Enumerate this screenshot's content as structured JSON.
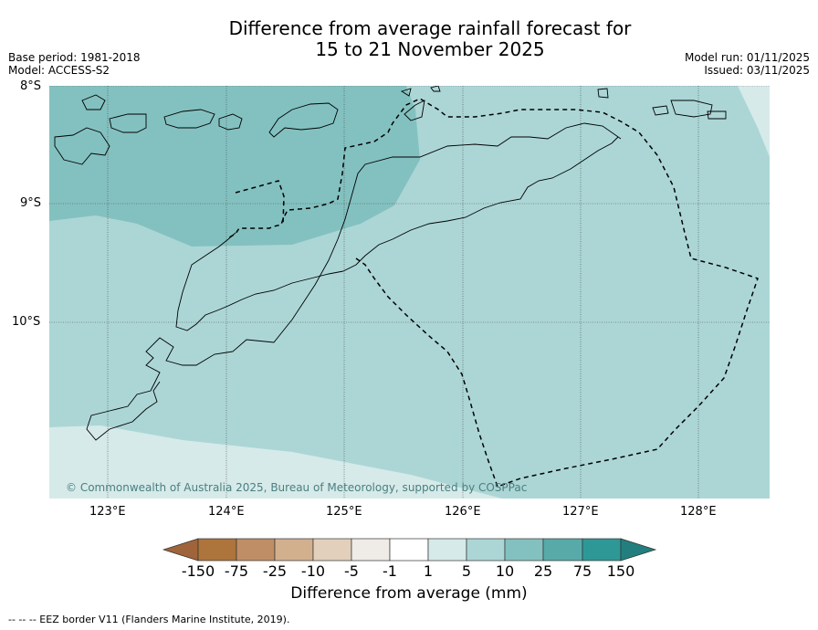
{
  "title": {
    "line1": "Difference from average rainfall forecast for",
    "line2": "15 to 21 November 2025"
  },
  "meta": {
    "base_period": "Base period: 1981-2018",
    "model": "Model: ACCESS-S2",
    "model_run": "Model run: 01/11/2025",
    "issued": "Issued: 03/11/2025"
  },
  "axes": {
    "lat_ticks": [
      "8°S",
      "9°S",
      "10°S"
    ],
    "lon_ticks": [
      "123°E",
      "124°E",
      "125°E",
      "126°E",
      "127°E",
      "128°E"
    ]
  },
  "colorbar": {
    "title": "Difference from average (mm)",
    "labels": [
      "-150",
      "-75",
      "-25",
      "-10",
      "-5",
      "-1",
      "1",
      "5",
      "10",
      "25",
      "75",
      "150"
    ],
    "colors": {
      "lt150": "#a0643a",
      "b1": "#ad743c",
      "b2": "#c08e66",
      "b3": "#d2b08e",
      "b4": "#e2d0bc",
      "b5": "#efebe7",
      "b6": "#ffffff",
      "b7": "#d6eae9",
      "b8": "#acd6d6",
      "b9": "#83c1c0",
      "b10": "#58aaa9",
      "b11": "#2e9897",
      "gt150": "#237f7f"
    }
  },
  "map": {
    "copyright": "© Commonwealth of Australia 2025, Bureau of Meteorology, supported by COSPPac",
    "fill_colors": {
      "mid": "#83c1c0",
      "main": "#acd6d6",
      "light": "#d6eae9"
    }
  },
  "footer": {
    "legend_text": "--  --  -- EEZ border V11 (Flanders Marine Institute, 2019)."
  }
}
